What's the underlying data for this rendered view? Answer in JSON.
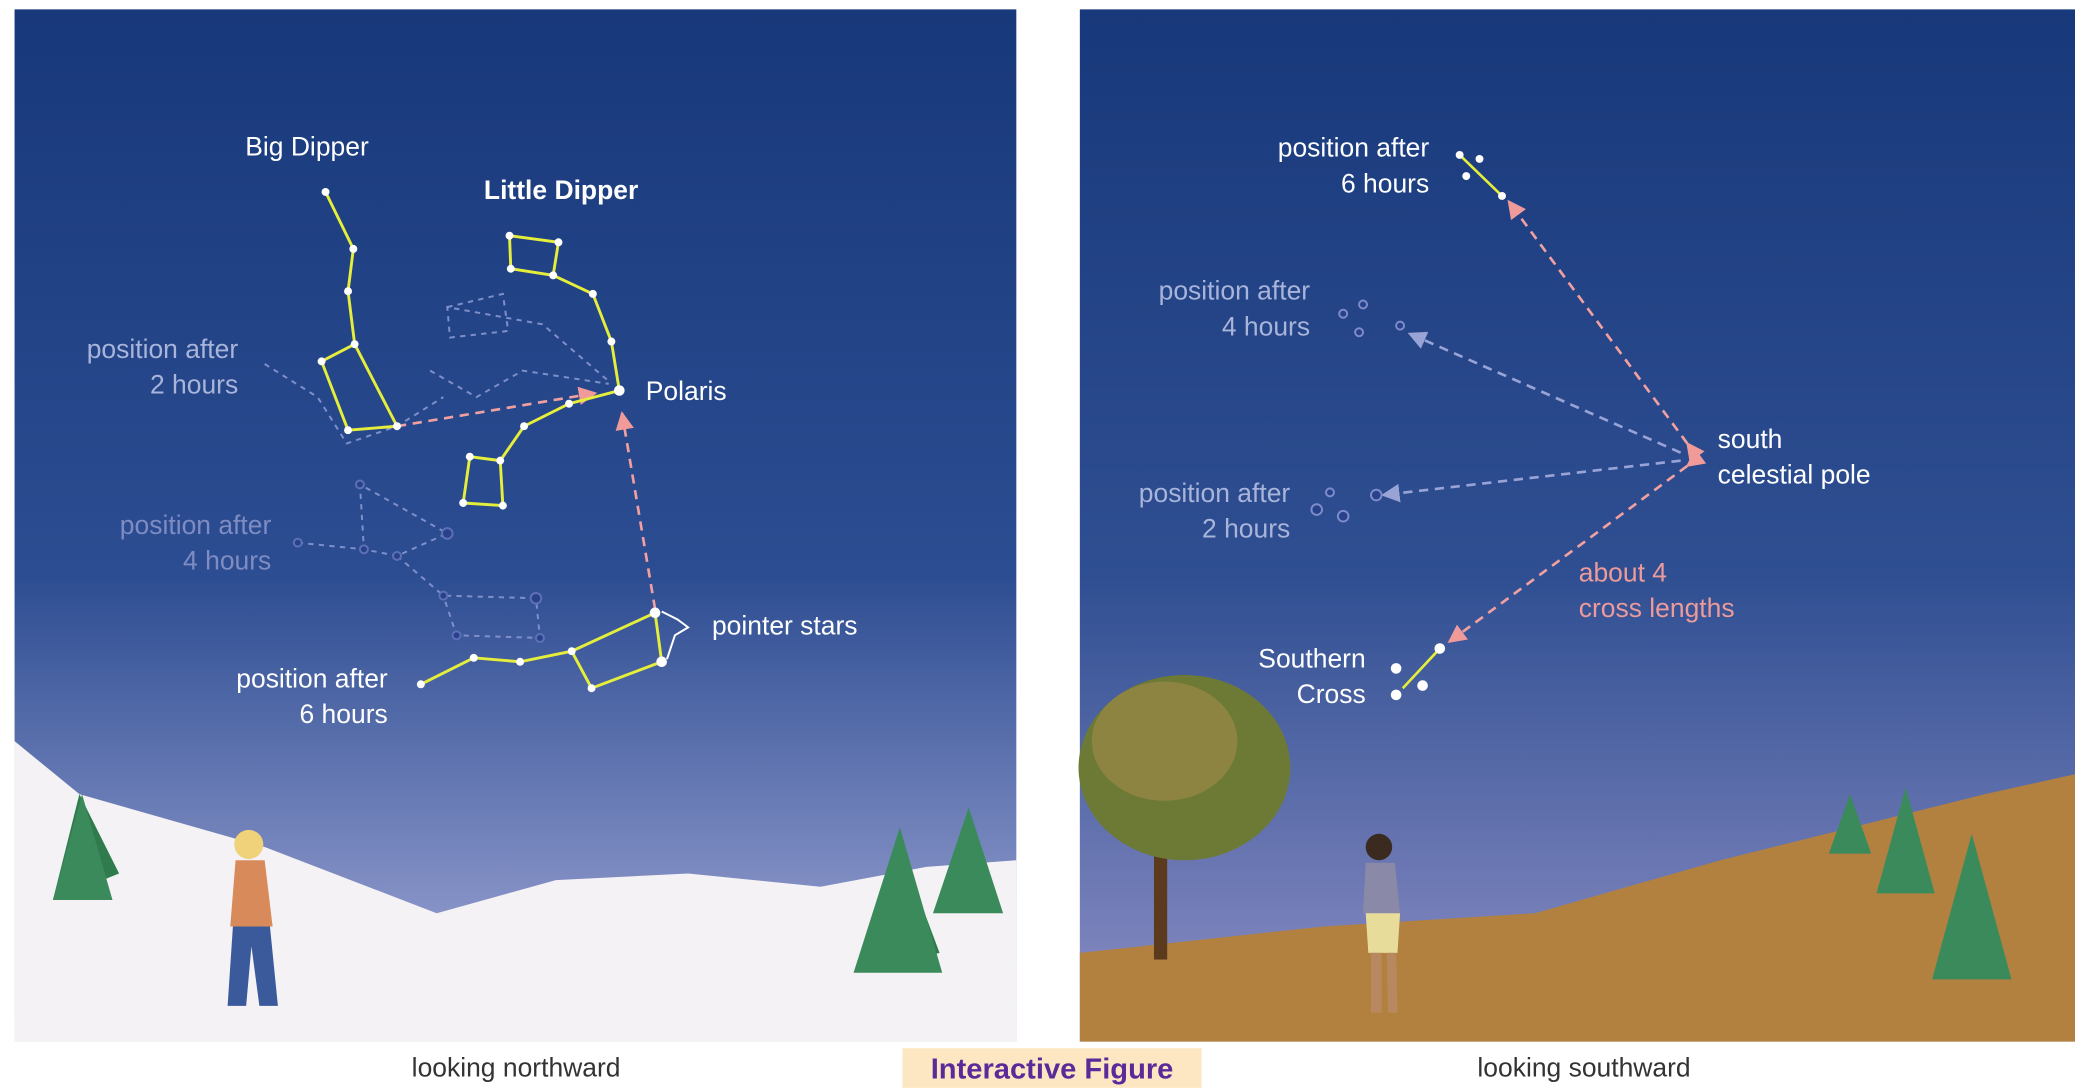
{
  "left_panel": {
    "caption": "looking northward",
    "labels": [
      {
        "lines": [
          "Big Dipper"
        ]
      },
      {
        "lines": [
          "Little Dipper"
        ]
      },
      {
        "lines": [
          "position after",
          "2 hours"
        ]
      },
      {
        "lines": [
          "Polaris"
        ]
      },
      {
        "lines": [
          "position after",
          "4 hours"
        ]
      },
      {
        "lines": [
          "pointer stars"
        ]
      },
      {
        "lines": [
          "position after",
          "6 hours"
        ]
      }
    ]
  },
  "right_panel": {
    "caption": "looking southward",
    "labels": [
      {
        "lines": [
          "position after",
          "6 hours"
        ]
      },
      {
        "lines": [
          "position after",
          "4 hours"
        ]
      },
      {
        "lines": [
          "south",
          "celestial pole"
        ]
      },
      {
        "lines": [
          "position after",
          "2 hours"
        ]
      },
      {
        "lines": [
          "about 4",
          "cross lengths"
        ]
      },
      {
        "lines": [
          "Southern",
          "Cross"
        ]
      }
    ]
  },
  "button": {
    "label": "Interactive Figure"
  }
}
